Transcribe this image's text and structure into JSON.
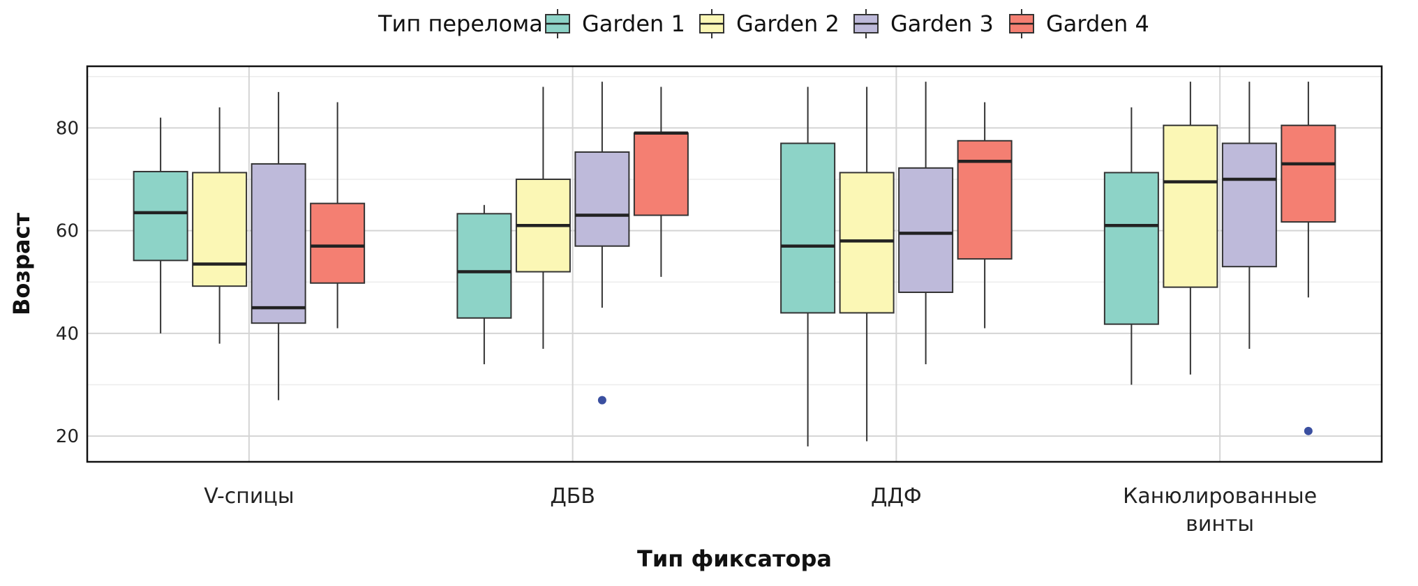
{
  "chart_data": {
    "type": "boxplot",
    "xlabel": "Тип фиксатора",
    "ylabel": "Возраст",
    "ylim": [
      15,
      92
    ],
    "yticks": [
      20,
      40,
      60,
      80
    ],
    "grid": true,
    "legend": {
      "title": "Тип перелома",
      "position": "top",
      "entries": [
        "Garden 1",
        "Garden 2",
        "Garden 3",
        "Garden 4"
      ]
    },
    "categories": [
      {
        "label": [
          "V-спицы"
        ]
      },
      {
        "label": [
          "ДБВ"
        ]
      },
      {
        "label": [
          "ДДФ"
        ]
      },
      {
        "label": [
          "Канюлированные",
          "винты"
        ]
      }
    ],
    "series": [
      {
        "name": "Garden 1",
        "color": "#8dd3c7",
        "boxes": [
          {
            "min": 40,
            "q1": 54.2,
            "median": 63.5,
            "q3": 71.5,
            "max": 82,
            "outliers": []
          },
          {
            "min": 34,
            "q1": 43,
            "median": 52,
            "q3": 63.3,
            "max": 65,
            "outliers": []
          },
          {
            "min": 18,
            "q1": 44,
            "median": 57,
            "q3": 77,
            "max": 88,
            "outliers": []
          },
          {
            "min": 30,
            "q1": 41.8,
            "median": 61,
            "q3": 71.3,
            "max": 84,
            "outliers": []
          }
        ]
      },
      {
        "name": "Garden 2",
        "color": "#fbf7b5",
        "boxes": [
          {
            "min": 38,
            "q1": 49.2,
            "median": 53.5,
            "q3": 71.3,
            "max": 84,
            "outliers": []
          },
          {
            "min": 37,
            "q1": 52,
            "median": 61,
            "q3": 70,
            "max": 88,
            "outliers": []
          },
          {
            "min": 19,
            "q1": 44,
            "median": 58,
            "q3": 71.3,
            "max": 88,
            "outliers": []
          },
          {
            "min": 32,
            "q1": 49,
            "median": 69.5,
            "q3": 80.5,
            "max": 89,
            "outliers": []
          }
        ]
      },
      {
        "name": "Garden 3",
        "color": "#bebada",
        "boxes": [
          {
            "min": 27,
            "q1": 42,
            "median": 45,
            "q3": 73,
            "max": 87,
            "outliers": []
          },
          {
            "min": 45,
            "q1": 57,
            "median": 63,
            "q3": 75.3,
            "max": 89,
            "outliers": [
              27
            ]
          },
          {
            "min": 34,
            "q1": 48,
            "median": 59.5,
            "q3": 72.2,
            "max": 89,
            "outliers": []
          },
          {
            "min": 37,
            "q1": 53,
            "median": 70,
            "q3": 77,
            "max": 89,
            "outliers": []
          }
        ]
      },
      {
        "name": "Garden 4",
        "color": "#f47f72",
        "boxes": [
          {
            "min": 41,
            "q1": 49.8,
            "median": 57,
            "q3": 65.3,
            "max": 85,
            "outliers": []
          },
          {
            "min": 51,
            "q1": 63,
            "median": 79,
            "q3": 79,
            "max": 88,
            "outliers": []
          },
          {
            "min": 41,
            "q1": 54.5,
            "median": 73.5,
            "q3": 77.5,
            "max": 85,
            "outliers": []
          },
          {
            "min": 47,
            "q1": 61.7,
            "median": 73,
            "q3": 80.5,
            "max": 89,
            "outliers": [
              21
            ]
          }
        ]
      }
    ],
    "outlier_color": "#3a4fa0"
  }
}
